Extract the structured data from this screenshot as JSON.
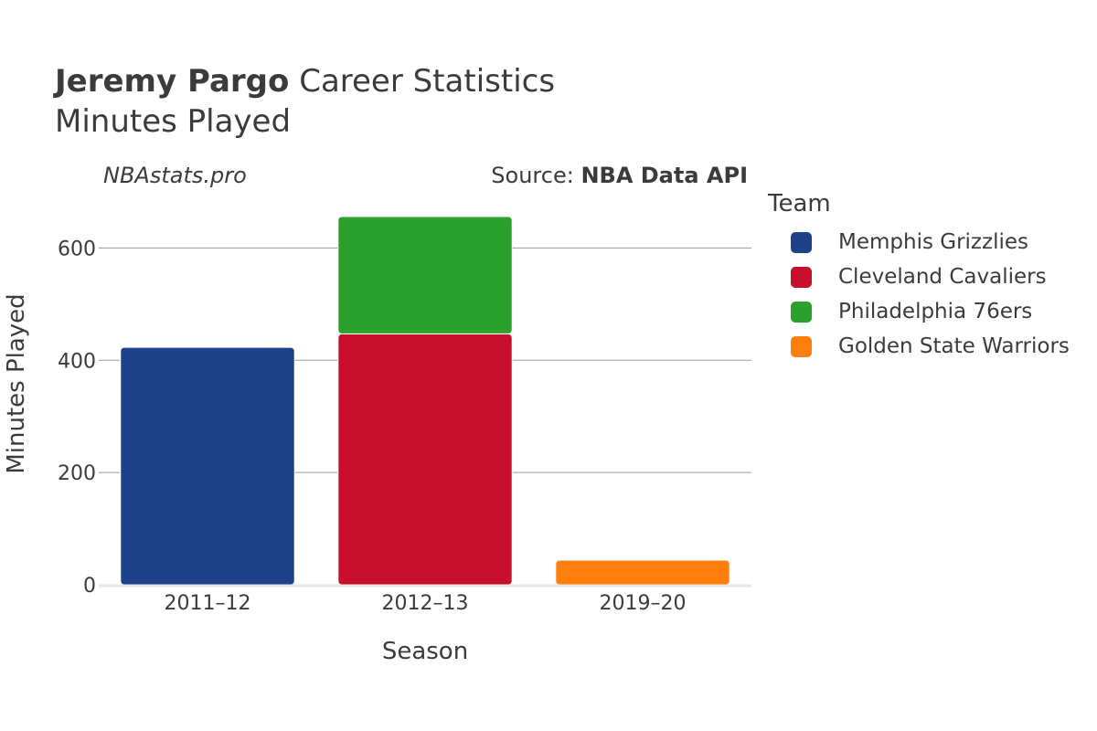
{
  "header": {
    "title_bold": "Jeremy Pargo",
    "title_rest": " Career Statistics",
    "subtitle": "Minutes Played",
    "watermark": "NBAstats.pro",
    "source_prefix": "Source: ",
    "source_name": "NBA Data API"
  },
  "legend": {
    "title": "Team",
    "items": [
      {
        "label": "Memphis Grizzlies",
        "color": "#1d428a"
      },
      {
        "label": "Cleveland Cavaliers",
        "color": "#c8102e"
      },
      {
        "label": "Philadelphia 76ers",
        "color": "#2ca02c"
      },
      {
        "label": "Golden State Warriors",
        "color": "#ff7f0e"
      }
    ]
  },
  "chart_data": {
    "type": "bar",
    "stacked": true,
    "title": "Jeremy Pargo Career Statistics",
    "subtitle": "Minutes Played",
    "xlabel": "Season",
    "ylabel": "Minutes Played",
    "categories": [
      "2011–12",
      "2012–13",
      "2019–20"
    ],
    "ylim": [
      0,
      700
    ],
    "yticks": [
      0,
      200,
      400,
      600
    ],
    "series": [
      {
        "name": "Memphis Grizzlies",
        "color": "#1d428a",
        "values": [
          423,
          0,
          0
        ]
      },
      {
        "name": "Cleveland Cavaliers",
        "color": "#c8102e",
        "values": [
          0,
          447,
          0
        ]
      },
      {
        "name": "Philadelphia 76ers",
        "color": "#2ca02c",
        "values": [
          0,
          209,
          0
        ]
      },
      {
        "name": "Golden State Warriors",
        "color": "#ff7f0e",
        "values": [
          0,
          0,
          44
        ]
      }
    ]
  }
}
